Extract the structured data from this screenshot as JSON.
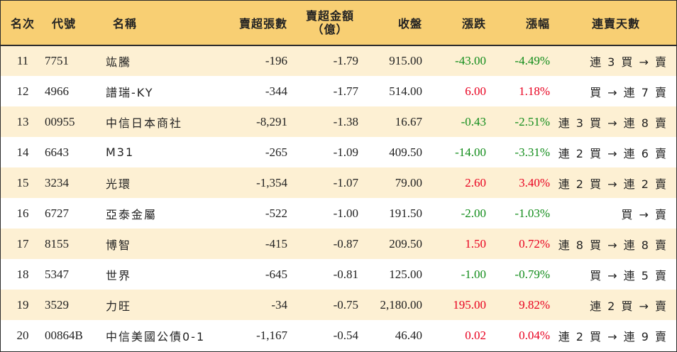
{
  "headers": {
    "rank": "名次",
    "code": "代號",
    "name": "名稱",
    "net_sell_lots": "賣超張數",
    "net_sell_amount_line1": "賣超金額",
    "net_sell_amount_line2": "（億）",
    "close": "收盤",
    "change": "漲跌",
    "change_pct": "漲幅",
    "streak": "連賣天數"
  },
  "colors": {
    "header_bg": "#f8cf73",
    "alt_row_bg": "#fdf0d3",
    "up": "#e8001f",
    "down": "#118c1a"
  },
  "rows": [
    {
      "rank": "11",
      "code": "7751",
      "name": "竑騰",
      "lots": "-196",
      "amount": "-1.79",
      "close": "915.00",
      "change": "-43.00",
      "pct": "-4.49%",
      "dir": "down",
      "streak": "連 3 買 → 賣"
    },
    {
      "rank": "12",
      "code": "4966",
      "name": "譜瑞-KY",
      "lots": "-344",
      "amount": "-1.77",
      "close": "514.00",
      "change": "6.00",
      "pct": "1.18%",
      "dir": "up",
      "streak": "買 → 連 7 賣"
    },
    {
      "rank": "13",
      "code": "00955",
      "name": "中信日本商社",
      "lots": "-8,291",
      "amount": "-1.38",
      "close": "16.67",
      "change": "-0.43",
      "pct": "-2.51%",
      "dir": "down",
      "streak": "連 3 買 → 連 8 賣"
    },
    {
      "rank": "14",
      "code": "6643",
      "name": "M31",
      "lots": "-265",
      "amount": "-1.09",
      "close": "409.50",
      "change": "-14.00",
      "pct": "-3.31%",
      "dir": "down",
      "streak": "連 2 買 → 連 6 賣"
    },
    {
      "rank": "15",
      "code": "3234",
      "name": "光環",
      "lots": "-1,354",
      "amount": "-1.07",
      "close": "79.00",
      "change": "2.60",
      "pct": "3.40%",
      "dir": "up",
      "streak": "連 2 買 → 連 2 賣"
    },
    {
      "rank": "16",
      "code": "6727",
      "name": "亞泰金屬",
      "lots": "-522",
      "amount": "-1.00",
      "close": "191.50",
      "change": "-2.00",
      "pct": "-1.03%",
      "dir": "down",
      "streak": "買 → 賣"
    },
    {
      "rank": "17",
      "code": "8155",
      "name": "博智",
      "lots": "-415",
      "amount": "-0.87",
      "close": "209.50",
      "change": "1.50",
      "pct": "0.72%",
      "dir": "up",
      "streak": "連 8 買 → 連 8 賣"
    },
    {
      "rank": "18",
      "code": "5347",
      "name": "世界",
      "lots": "-645",
      "amount": "-0.81",
      "close": "125.00",
      "change": "-1.00",
      "pct": "-0.79%",
      "dir": "down",
      "streak": "買 → 連 5 賣"
    },
    {
      "rank": "19",
      "code": "3529",
      "name": "力旺",
      "lots": "-34",
      "amount": "-0.75",
      "close": "2,180.00",
      "change": "195.00",
      "pct": "9.82%",
      "dir": "up",
      "streak": "連 2 買 → 賣"
    },
    {
      "rank": "20",
      "code": "00864B",
      "name": "中信美國公債0-1",
      "lots": "-1,167",
      "amount": "-0.54",
      "close": "46.40",
      "change": "0.02",
      "pct": "0.04%",
      "dir": "up",
      "streak": "連 2 買 → 連 9 賣"
    }
  ]
}
